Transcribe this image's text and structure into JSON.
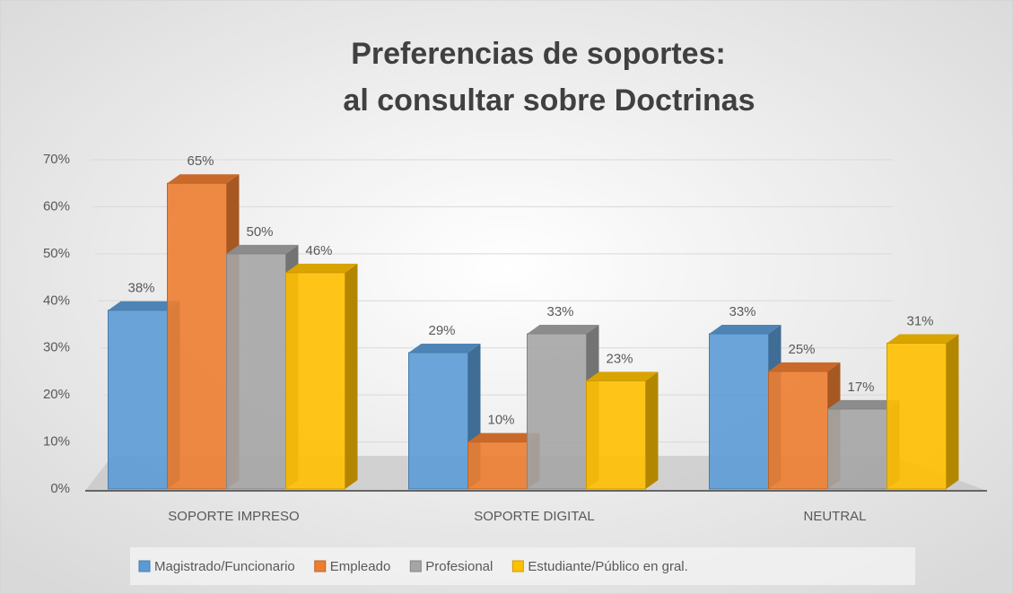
{
  "chart_data": {
    "type": "bar3d",
    "title": [
      "Preferencias de soportes:",
      "al consultar sobre Doctrinas"
    ],
    "categories": [
      "SOPORTE IMPRESO",
      "SOPORTE DIGITAL",
      "NEUTRAL"
    ],
    "series": [
      {
        "name": "Magistrado/Funcionario",
        "color": "#5b9bd5",
        "values": [
          38,
          29,
          33
        ],
        "value_labels": [
          "38%",
          "29%",
          "33%"
        ]
      },
      {
        "name": "Empleado",
        "color": "#ed7d31",
        "values": [
          65,
          10,
          25
        ],
        "value_labels": [
          "65%",
          "10%",
          "25%"
        ]
      },
      {
        "name": "Profesional",
        "color": "#a5a5a5",
        "values": [
          50,
          33,
          17
        ],
        "value_labels": [
          "50%",
          "33%",
          "17%"
        ]
      },
      {
        "name": "Estudiante/Público en gral.",
        "color": "#ffc000",
        "values": [
          46,
          23,
          31
        ],
        "value_labels": [
          "46%",
          "23%",
          "31%"
        ]
      }
    ],
    "ylim": [
      0,
      70
    ],
    "yticks": [
      {
        "value": 0,
        "label": "0%"
      },
      {
        "value": 10,
        "label": "10%"
      },
      {
        "value": 20,
        "label": "20%"
      },
      {
        "value": 30,
        "label": "30%"
      },
      {
        "value": 40,
        "label": "40%"
      },
      {
        "value": 50,
        "label": "50%"
      },
      {
        "value": 60,
        "label": "60%"
      },
      {
        "value": 70,
        "label": "70%"
      }
    ],
    "grid": true,
    "legend": "bottom"
  }
}
